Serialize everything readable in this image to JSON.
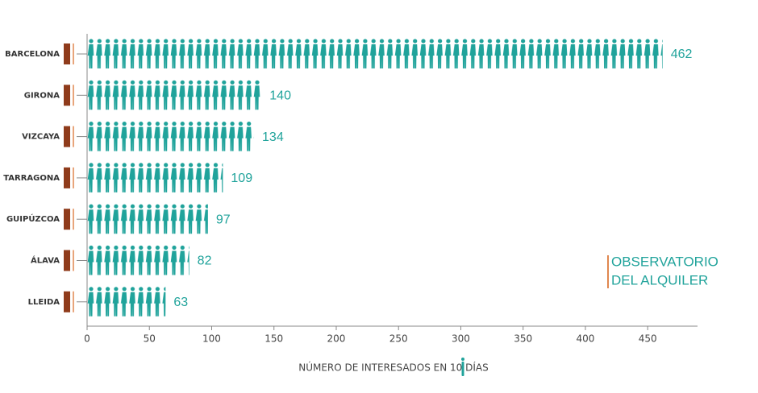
{
  "chart_data": {
    "type": "bar",
    "orientation": "horizontal",
    "categories": [
      "BARCELONA",
      "GIRONA",
      "VIZCAYA",
      "TARRAGONA",
      "GUIPÚZCOA",
      "ÁLAVA",
      "LLEIDA"
    ],
    "values": [
      462,
      140,
      134,
      109,
      97,
      82,
      63
    ],
    "color": "#20a39b",
    "xlim": [
      0,
      490
    ],
    "xticks": [
      0,
      50,
      100,
      150,
      200,
      250,
      300,
      350,
      400,
      450
    ],
    "xlabel": "NÚMERO DE INTERESADOS EN 10 DÍAS",
    "annotations": [
      "OBSERVATORIO",
      "DEL ALQUILER"
    ]
  }
}
